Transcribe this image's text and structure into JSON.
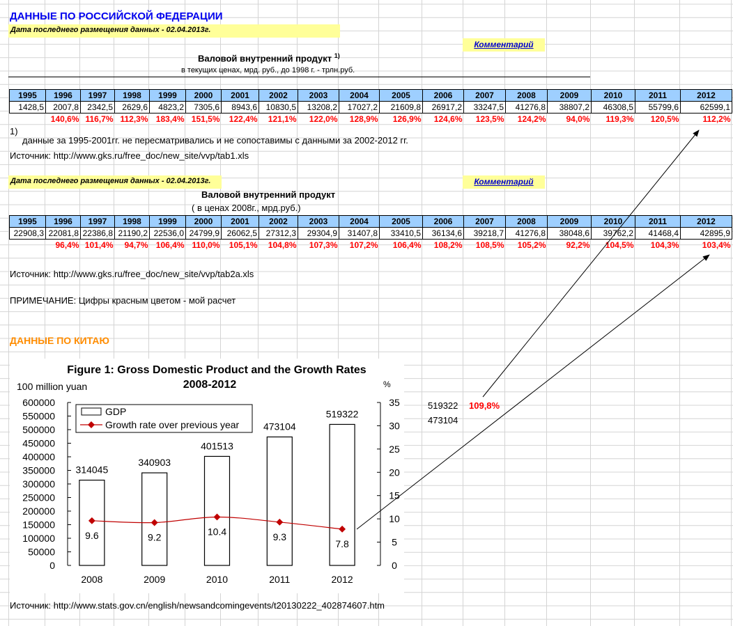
{
  "russia": {
    "title": "ДАННЫЕ ПО РОССИЙСКОЙ ФЕДЕРАЦИИ",
    "date_line": "Дата последнего размещения данных - 02.04.2013г.",
    "comment_link": "Комментарий",
    "table1": {
      "title": "Валовой внутренний продукт",
      "title_note": "1)",
      "subtitle": "в текущих ценах, мрд. руб., до 1998 г. - трлн.руб.",
      "years": [
        "1995",
        "1996",
        "1997",
        "1998",
        "1999",
        "2000",
        "2001",
        "2002",
        "2003",
        "2004",
        "2005",
        "2006",
        "2007",
        "2008",
        "2009",
        "2010",
        "2011",
        "2012"
      ],
      "values": [
        "1428,5",
        "2007,8",
        "2342,5",
        "2629,6",
        "4823,2",
        "7305,6",
        "8943,6",
        "10830,5",
        "13208,2",
        "17027,2",
        "21609,8",
        "26917,2",
        "33247,5",
        "41276,8",
        "38807,2",
        "46308,5",
        "55799,6",
        "62599,1"
      ],
      "growth": [
        "",
        "140,6%",
        "116,7%",
        "112,3%",
        "183,4%",
        "151,5%",
        "122,4%",
        "121,1%",
        "122,0%",
        "128,9%",
        "126,9%",
        "124,6%",
        "123,5%",
        "124,2%",
        "94,0%",
        "119,3%",
        "120,5%",
        "112,2%"
      ],
      "footnote_mark": "1)",
      "footnote": "данные за 1995-2001гг. не пересматривались и не сопоставимы с данными за 2002-2012 гг.",
      "source": "Источник: http://www.gks.ru/free_doc/new_site/vvp/tab1.xls"
    },
    "table2": {
      "date_line": "Дата последнего размещения данных - 02.04.2013г.",
      "comment_link": "Комментарий",
      "title": "Валовой внутренний продукт",
      "subtitle": "( в ценах 2008г., мрд.руб.)",
      "years": [
        "1995",
        "1996",
        "1997",
        "1998",
        "1999",
        "2000",
        "2001",
        "2002",
        "2003",
        "2004",
        "2005",
        "2006",
        "2007",
        "2008",
        "2009",
        "2010",
        "2011",
        "2012"
      ],
      "values": [
        "22908,3",
        "22081,8",
        "22386,8",
        "21190,2",
        "22536,0",
        "24799,9",
        "26062,5",
        "27312,3",
        "29304,9",
        "31407,8",
        "33410,5",
        "36134,6",
        "39218,7",
        "41276,8",
        "38048,6",
        "39762,2",
        "41468,4",
        "42895,9"
      ],
      "growth": [
        "",
        "96,4%",
        "101,4%",
        "94,7%",
        "106,4%",
        "110,0%",
        "105,1%",
        "104,8%",
        "107,3%",
        "107,2%",
        "106,4%",
        "108,2%",
        "108,5%",
        "105,2%",
        "92,2%",
        "104,5%",
        "104,3%",
        "103,4%"
      ],
      "source": "Источник: http://www.gks.ru/free_doc/new_site/vvp/tab2a.xls"
    },
    "note": "ПРИМЕЧАНИЕ: Цифры красным цветом - мой расчет"
  },
  "china": {
    "title": "ДАННЫЕ ПО КИТАЮ",
    "side_value_1": "519322",
    "side_growth": "109,8%",
    "side_value_2": "473104",
    "source": "Источник: http://www.stats.gov.cn/english/newsandcomingevents/t20130222_402874607.htm"
  },
  "chart_data": {
    "type": "bar",
    "title": "Figure 1: Gross Domestic Product and the Growth Rates",
    "subtitle": "2008-2012",
    "ylabel": "100 million yuan",
    "y2label": "%",
    "categories": [
      "2008",
      "2009",
      "2010",
      "2011",
      "2012"
    ],
    "series": [
      {
        "name": "GDP",
        "kind": "bar",
        "values": [
          314045,
          340903,
          401513,
          473104,
          519322
        ]
      },
      {
        "name": "Growth rate over previous year",
        "kind": "line",
        "axis": "right",
        "values": [
          9.6,
          9.2,
          10.4,
          9.3,
          7.8
        ]
      }
    ],
    "ylim": [
      0,
      600000
    ],
    "yticks": [
      0,
      50000,
      100000,
      150000,
      200000,
      250000,
      300000,
      350000,
      400000,
      450000,
      500000,
      550000,
      600000
    ],
    "y2lim": [
      0,
      35
    ],
    "y2ticks": [
      0,
      5,
      10,
      15,
      20,
      25,
      30,
      35
    ],
    "legend": "top-left",
    "grid": false,
    "colors": {
      "bar_fill": "#ffffff",
      "bar_stroke": "#000000",
      "line": "#c00000"
    }
  },
  "colors": {
    "header_blue": "#9ecfff",
    "highlight_yellow": "#ffff99",
    "growth_red": "#ff0000",
    "title_blue": "#0000ee",
    "title_orange": "#ff8c00"
  }
}
